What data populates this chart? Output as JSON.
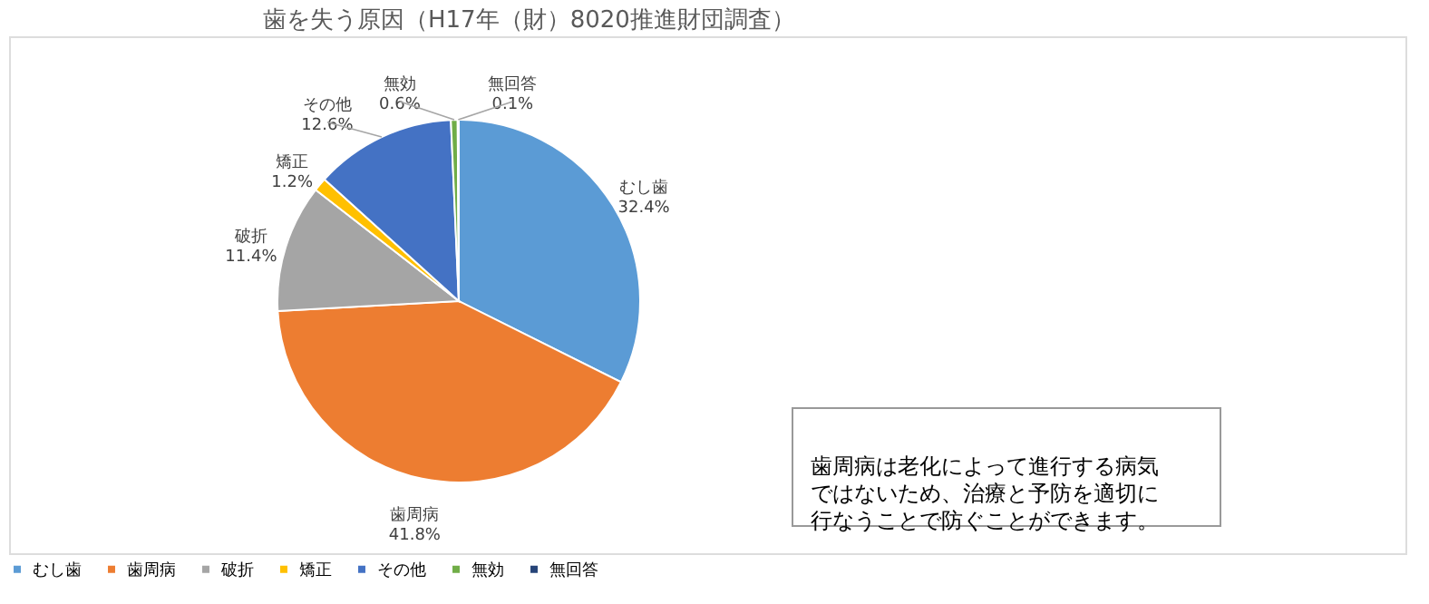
{
  "chart_data": {
    "type": "pie",
    "title": "歯を失う原因（H17年（財）8020推進財団調査）",
    "categories": [
      "むし歯",
      "歯周病",
      "破折",
      "矯正",
      "その他",
      "無効",
      "無回答"
    ],
    "values": [
      32.4,
      41.8,
      11.4,
      1.2,
      12.6,
      0.6,
      0.1
    ],
    "value_labels": [
      "32.4%",
      "41.8%",
      "11.4%",
      "1.2%",
      "12.6%",
      "0.6%",
      "0.1%"
    ],
    "colors": [
      "#5b9bd5",
      "#ed7d31",
      "#a5a5a5",
      "#ffc000",
      "#4472c4",
      "#70ad47",
      "#264478"
    ],
    "legend": "bottom",
    "annotations": [
      "歯周病は老化によって進行する病気ではないため、治療と予防を適切に行なうことで防ぐことができます。"
    ]
  }
}
